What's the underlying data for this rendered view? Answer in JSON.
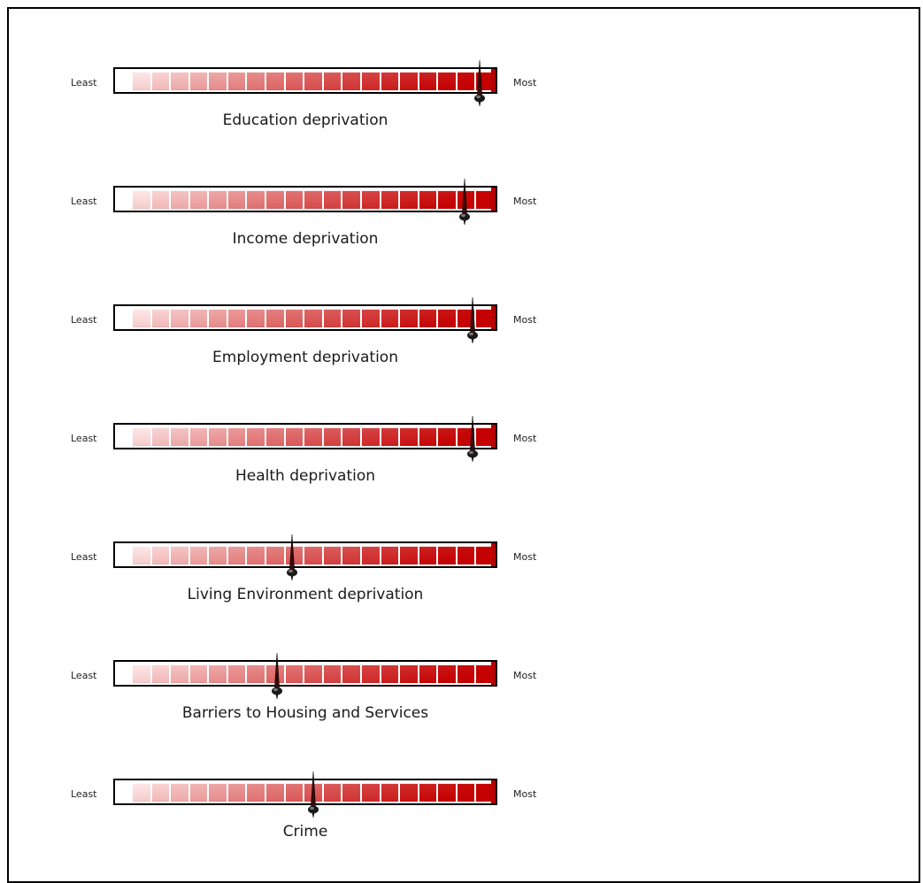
{
  "scale": {
    "least_label": "Least",
    "most_label": "Most",
    "segment_count": 19
  },
  "colors": {
    "segment_start": "#fde7e7",
    "segment_end": "#c40000",
    "needle": "#3a0a0a",
    "knob": "#1a1a1a"
  },
  "indicators": [
    {
      "name": "Education deprivation",
      "level": 0.96
    },
    {
      "name": "Income deprivation",
      "level": 0.92
    },
    {
      "name": "Employment deprivation",
      "level": 0.94
    },
    {
      "name": "Health deprivation",
      "level": 0.94
    },
    {
      "name": "Living Environment deprivation",
      "level": 0.44
    },
    {
      "name": "Barriers to Housing and Services",
      "level": 0.4
    },
    {
      "name": "Crime",
      "level": 0.5
    }
  ]
}
